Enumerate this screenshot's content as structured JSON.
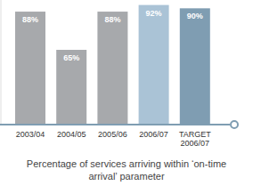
{
  "chart_data": {
    "type": "bar",
    "title": "Percentage of services arriving within ‘on-time arrival’ parameter",
    "categories": [
      "2003/04",
      "2004/05",
      "2005/06",
      "2006/07",
      "TARGET 2006/07"
    ],
    "values": [
      88,
      65,
      88,
      92,
      90
    ],
    "value_labels": [
      "88%",
      "65%",
      "88%",
      "92%",
      "90%"
    ],
    "colors": [
      "#a7a9ac",
      "#a7a9ac",
      "#a7a9ac",
      "#aac3d6",
      "#7f9db2"
    ],
    "ylim": [
      20,
      95
    ],
    "data_labels": true,
    "tick_labels": "x",
    "grid": false
  }
}
